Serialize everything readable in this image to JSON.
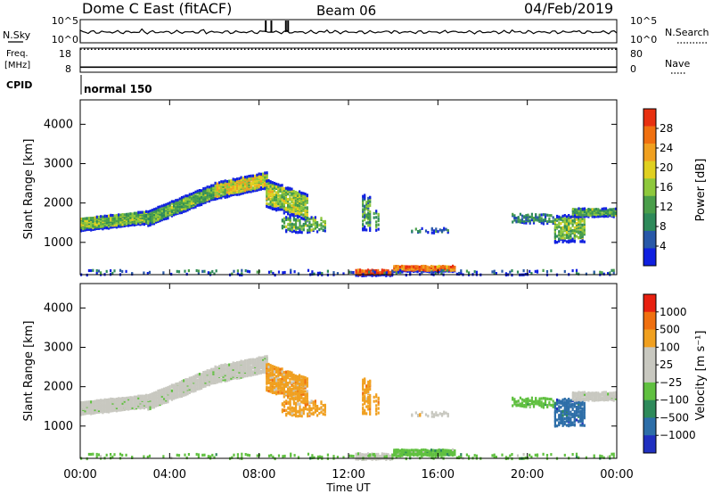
{
  "header": {
    "title": "Dome C East (fitACF)",
    "beam": "Beam 06",
    "date": "04/Feb/2019"
  },
  "monitor": {
    "nsky_label": "N.Sky",
    "nsearch_label": "N.Search",
    "freq_label": "Freq.",
    "freq_unit": "[MHz]",
    "nave_label": "Nave",
    "cpid_label": "CPID",
    "cpid_value": "normal 150",
    "noise_ticks": [
      "10^5",
      "10^0"
    ],
    "noise_right_ticks": [
      "10^5",
      "10^0"
    ],
    "freq_ticks": [
      "18",
      "8"
    ],
    "nave_ticks": [
      "80",
      "0"
    ],
    "freq_value_mhz": 17.5,
    "nave_value": 2
  },
  "chart_data": [
    {
      "type": "heatmap",
      "name": "power",
      "ylabel": "Slant Range [km]",
      "ylim": [
        180,
        4620
      ],
      "yticks": [
        "4000",
        "3000",
        "2000",
        "1000"
      ],
      "yticks_values": [
        4000,
        3000,
        2000,
        1000
      ],
      "xlim_hours": [
        0,
        24
      ],
      "colorbar": {
        "label": "Power [dB]",
        "ticks": [
          "28",
          "24",
          "20",
          "16",
          "12",
          "8",
          "4"
        ],
        "tick_values": [
          28,
          24,
          20,
          16,
          12,
          8,
          4
        ],
        "range": [
          0,
          32
        ],
        "colors": [
          "#1020e0",
          "#2858a8",
          "#2e8a5a",
          "#4a9e4a",
          "#8ec83c",
          "#e0d020",
          "#f0a020",
          "#f07010",
          "#e83010"
        ]
      }
    },
    {
      "type": "heatmap",
      "name": "velocity",
      "ylabel": "Slant Range [km]",
      "xlabel": "Time UT",
      "ylim": [
        180,
        4620
      ],
      "yticks": [
        "4000",
        "3000",
        "2000",
        "1000"
      ],
      "yticks_values": [
        4000,
        3000,
        2000,
        1000
      ],
      "xlim_hours": [
        0,
        24
      ],
      "xticks": [
        "00:00",
        "04:00",
        "08:00",
        "12:00",
        "16:00",
        "20:00",
        "00:00"
      ],
      "xticks_hours": [
        0,
        4,
        8,
        12,
        16,
        20,
        24
      ],
      "colorbar": {
        "label": "Velocity [m s⁻¹]",
        "ticks": [
          "1000",
          "500",
          "100",
          "25",
          "−25",
          "−100",
          "−500",
          "−1000"
        ],
        "colors": [
          "#2030c0",
          "#2d6ea8",
          "#2e8a5a",
          "#60c040",
          "#c8c8c0",
          "#c8c8c0",
          "#f0a020",
          "#f07010",
          "#e82010"
        ]
      }
    }
  ]
}
